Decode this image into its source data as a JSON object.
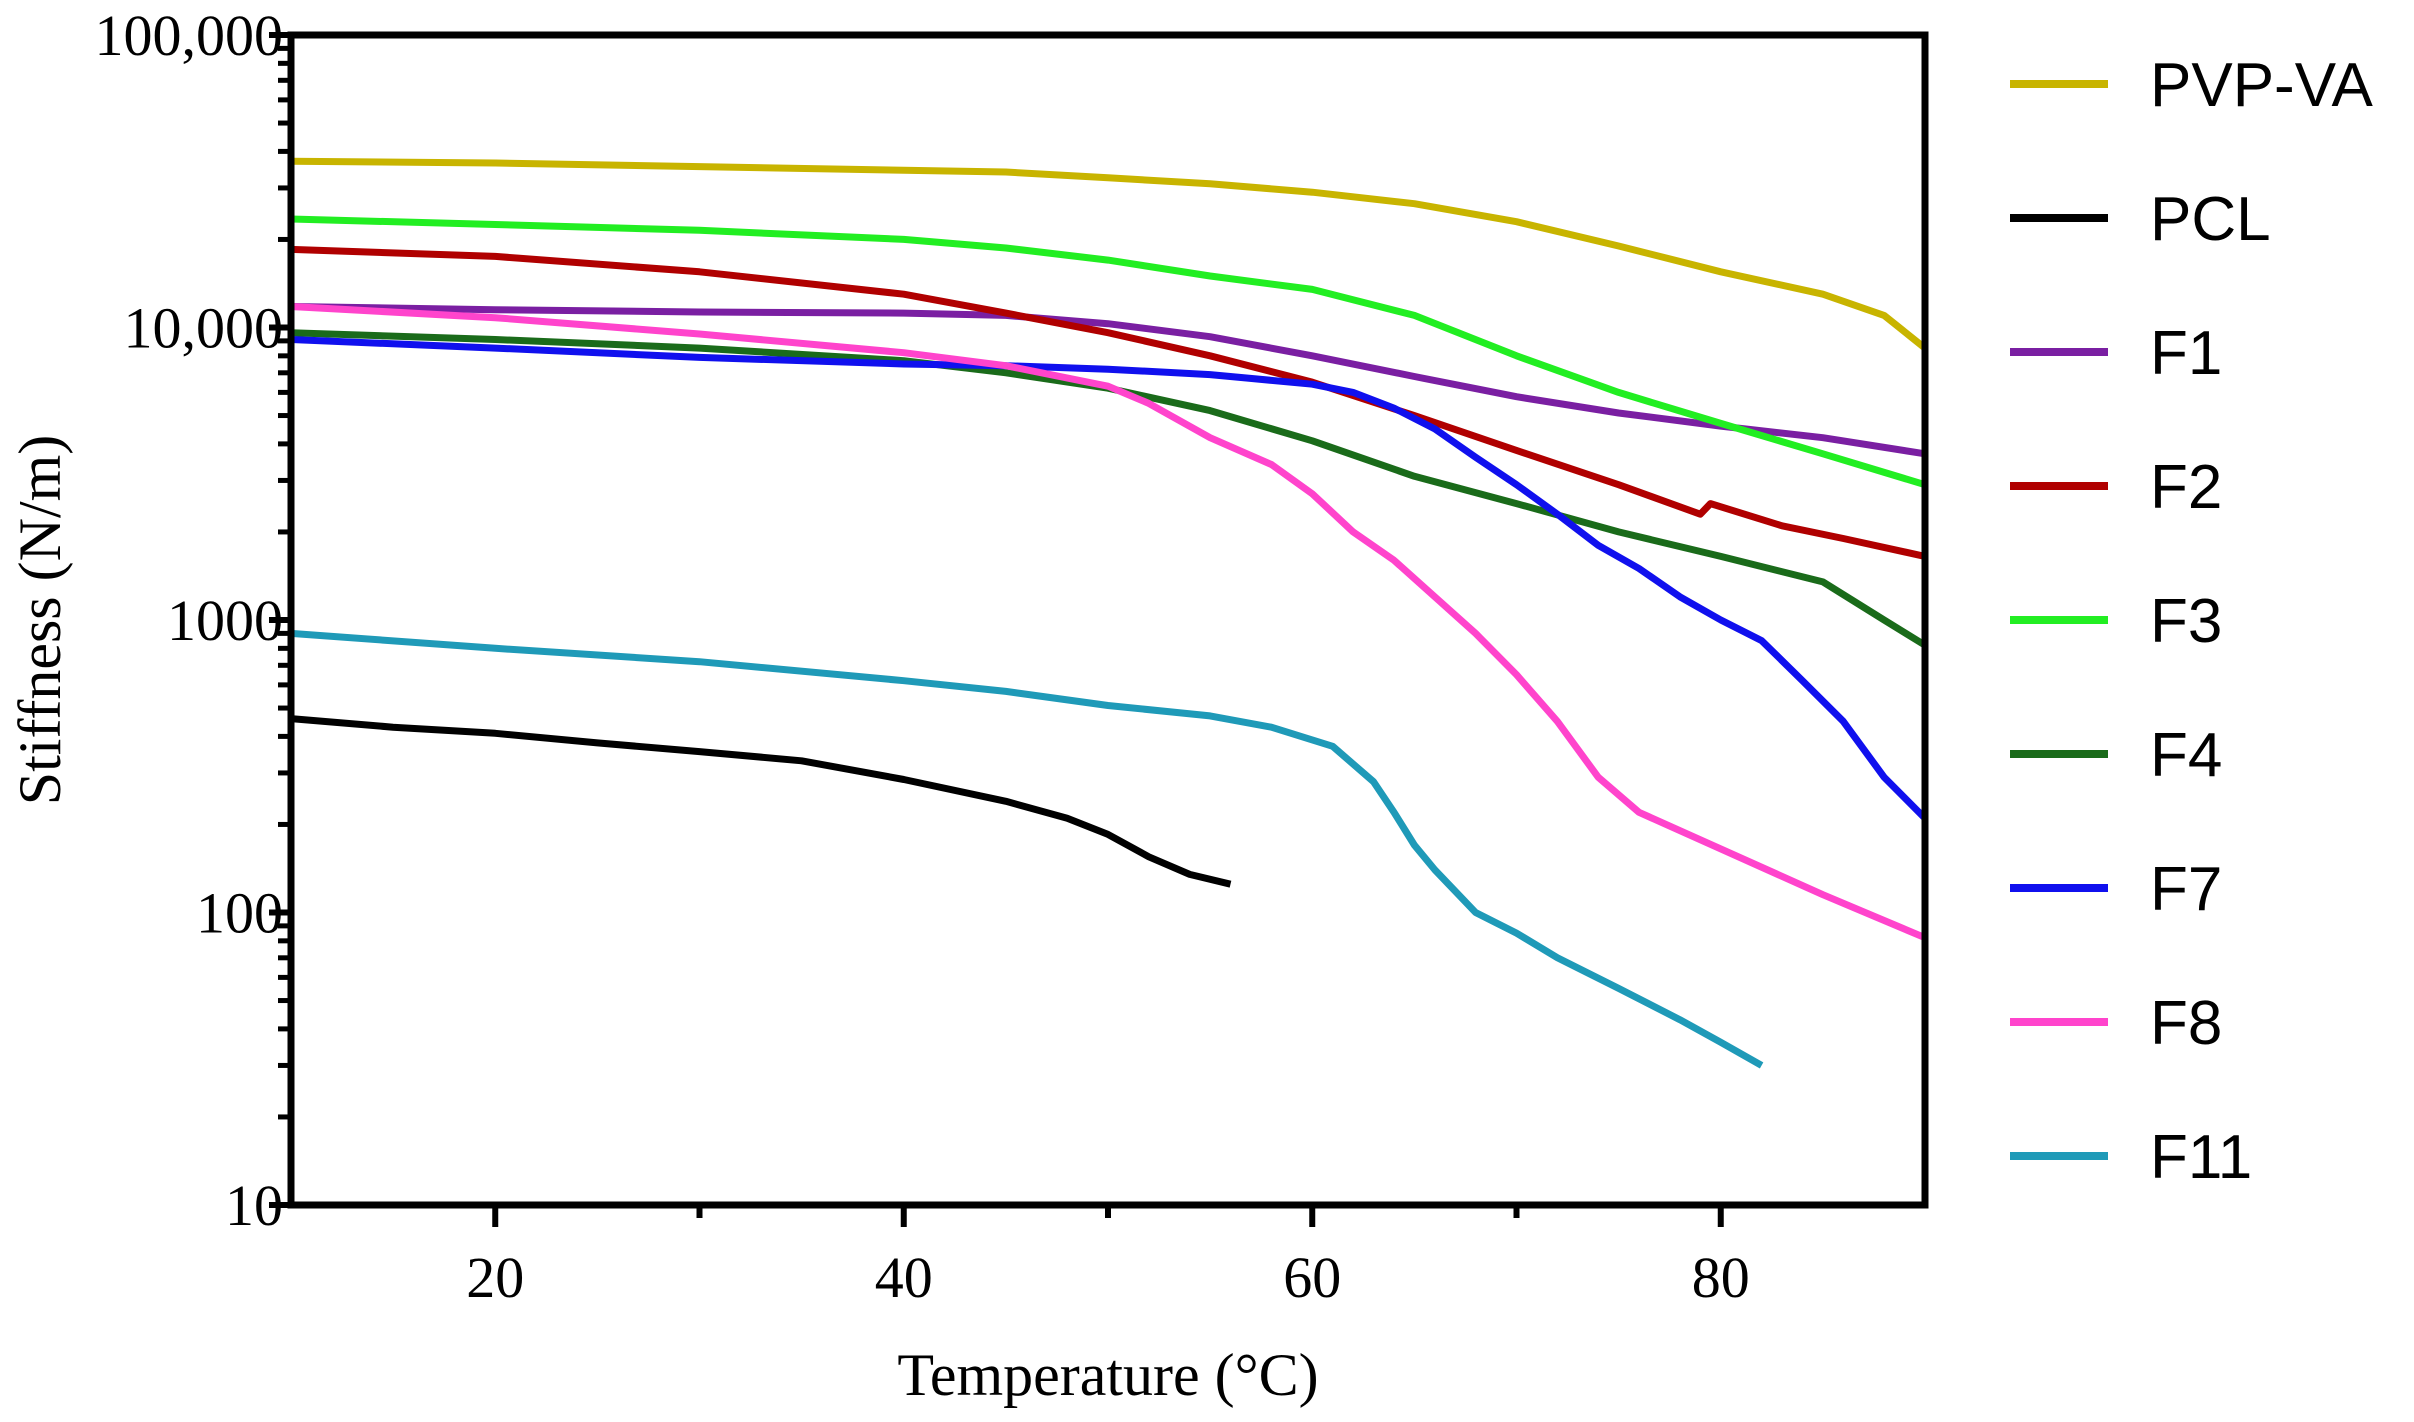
{
  "chart_data": {
    "type": "line",
    "title": "",
    "xlabel": "Temperature (°C)",
    "ylabel": "Stiffness (N/m)",
    "xlim": [
      10,
      90
    ],
    "ylim": [
      10,
      100000
    ],
    "yscale": "log",
    "grid": false,
    "legend_position": "right",
    "x_ticks": [
      {
        "value": 20,
        "label": "20"
      },
      {
        "value": 40,
        "label": "40"
      },
      {
        "value": 60,
        "label": "60"
      },
      {
        "value": 80,
        "label": "80"
      }
    ],
    "x_minor_ticks": [
      30,
      50,
      70
    ],
    "y_ticks": [
      {
        "value": 10,
        "label": "10"
      },
      {
        "value": 100,
        "label": "100"
      },
      {
        "value": 1000,
        "label": "1000"
      },
      {
        "value": 10000,
        "label": "10,000"
      },
      {
        "value": 100000,
        "label": "100,000"
      }
    ],
    "series": [
      {
        "name": "PVP-VA",
        "color": "#c8b400",
        "points": [
          [
            10,
            37000
          ],
          [
            20,
            36500
          ],
          [
            30,
            35500
          ],
          [
            40,
            34500
          ],
          [
            45,
            34000
          ],
          [
            50,
            32500
          ],
          [
            55,
            31000
          ],
          [
            60,
            29000
          ],
          [
            65,
            26500
          ],
          [
            70,
            23000
          ],
          [
            75,
            19000
          ],
          [
            80,
            15500
          ],
          [
            85,
            13000
          ],
          [
            88,
            11000
          ],
          [
            90,
            8500
          ]
        ]
      },
      {
        "name": "PCL",
        "color": "#000000",
        "points": [
          [
            10,
            460
          ],
          [
            15,
            430
          ],
          [
            20,
            410
          ],
          [
            25,
            380
          ],
          [
            30,
            355
          ],
          [
            35,
            330
          ],
          [
            40,
            285
          ],
          [
            45,
            240
          ],
          [
            48,
            210
          ],
          [
            50,
            185
          ],
          [
            52,
            155
          ],
          [
            54,
            135
          ],
          [
            56,
            125
          ]
        ]
      },
      {
        "name": "F1",
        "color": "#7a1fa2",
        "points": [
          [
            10,
            11800
          ],
          [
            20,
            11500
          ],
          [
            30,
            11300
          ],
          [
            40,
            11200
          ],
          [
            45,
            11000
          ],
          [
            50,
            10300
          ],
          [
            55,
            9300
          ],
          [
            60,
            8000
          ],
          [
            65,
            6800
          ],
          [
            70,
            5800
          ],
          [
            75,
            5100
          ],
          [
            80,
            4600
          ],
          [
            85,
            4200
          ],
          [
            90,
            3700
          ]
        ]
      },
      {
        "name": "F2",
        "color": "#b00000",
        "points": [
          [
            10,
            18500
          ],
          [
            20,
            17500
          ],
          [
            30,
            15500
          ],
          [
            40,
            13000
          ],
          [
            45,
            11200
          ],
          [
            50,
            9600
          ],
          [
            55,
            8000
          ],
          [
            60,
            6500
          ],
          [
            65,
            5000
          ],
          [
            70,
            3800
          ],
          [
            75,
            2900
          ],
          [
            79,
            2300
          ],
          [
            79.5,
            2500
          ],
          [
            83,
            2100
          ],
          [
            86,
            1900
          ],
          [
            90,
            1650
          ]
        ]
      },
      {
        "name": "F3",
        "color": "#22ee22",
        "points": [
          [
            10,
            23500
          ],
          [
            20,
            22500
          ],
          [
            30,
            21500
          ],
          [
            40,
            20000
          ],
          [
            45,
            18700
          ],
          [
            50,
            17000
          ],
          [
            55,
            15000
          ],
          [
            60,
            13500
          ],
          [
            65,
            11000
          ],
          [
            70,
            8000
          ],
          [
            75,
            6000
          ],
          [
            80,
            4700
          ],
          [
            85,
            3700
          ],
          [
            90,
            2900
          ]
        ]
      },
      {
        "name": "F4",
        "color": "#1a6b1a",
        "points": [
          [
            10,
            9600
          ],
          [
            20,
            9100
          ],
          [
            30,
            8500
          ],
          [
            40,
            7700
          ],
          [
            45,
            7000
          ],
          [
            50,
            6200
          ],
          [
            55,
            5200
          ],
          [
            60,
            4100
          ],
          [
            65,
            3100
          ],
          [
            70,
            2500
          ],
          [
            75,
            2000
          ],
          [
            80,
            1650
          ],
          [
            85,
            1350
          ],
          [
            88,
            1000
          ],
          [
            90,
            820
          ]
        ]
      },
      {
        "name": "F7",
        "color": "#1010ee",
        "points": [
          [
            10,
            9100
          ],
          [
            20,
            8500
          ],
          [
            30,
            7900
          ],
          [
            40,
            7500
          ],
          [
            45,
            7400
          ],
          [
            50,
            7200
          ],
          [
            55,
            6900
          ],
          [
            60,
            6400
          ],
          [
            62,
            6000
          ],
          [
            64,
            5300
          ],
          [
            66,
            4500
          ],
          [
            68,
            3600
          ],
          [
            70,
            2900
          ],
          [
            72,
            2300
          ],
          [
            74,
            1800
          ],
          [
            76,
            1500
          ],
          [
            78,
            1200
          ],
          [
            80,
            1000
          ],
          [
            82,
            850
          ],
          [
            84,
            620
          ],
          [
            86,
            450
          ],
          [
            88,
            290
          ],
          [
            90,
            210
          ]
        ]
      },
      {
        "name": "F8",
        "color": "#ff44cc",
        "points": [
          [
            10,
            11800
          ],
          [
            20,
            10800
          ],
          [
            30,
            9500
          ],
          [
            40,
            8200
          ],
          [
            45,
            7400
          ],
          [
            50,
            6300
          ],
          [
            52,
            5500
          ],
          [
            55,
            4200
          ],
          [
            58,
            3400
          ],
          [
            60,
            2700
          ],
          [
            62,
            2000
          ],
          [
            64,
            1600
          ],
          [
            66,
            1200
          ],
          [
            68,
            900
          ],
          [
            70,
            650
          ],
          [
            72,
            450
          ],
          [
            74,
            290
          ],
          [
            76,
            220
          ],
          [
            80,
            165
          ],
          [
            85,
            115
          ],
          [
            90,
            82
          ]
        ]
      },
      {
        "name": "F11",
        "color": "#1f9ab8",
        "points": [
          [
            10,
            900
          ],
          [
            20,
            800
          ],
          [
            30,
            720
          ],
          [
            40,
            620
          ],
          [
            45,
            570
          ],
          [
            50,
            510
          ],
          [
            55,
            470
          ],
          [
            58,
            430
          ],
          [
            61,
            370
          ],
          [
            63,
            280
          ],
          [
            64,
            220
          ],
          [
            65,
            170
          ],
          [
            66,
            140
          ],
          [
            68,
            100
          ],
          [
            70,
            85
          ],
          [
            72,
            70
          ],
          [
            75,
            55
          ],
          [
            78,
            43
          ],
          [
            80,
            36
          ],
          [
            82,
            30
          ]
        ]
      }
    ]
  }
}
